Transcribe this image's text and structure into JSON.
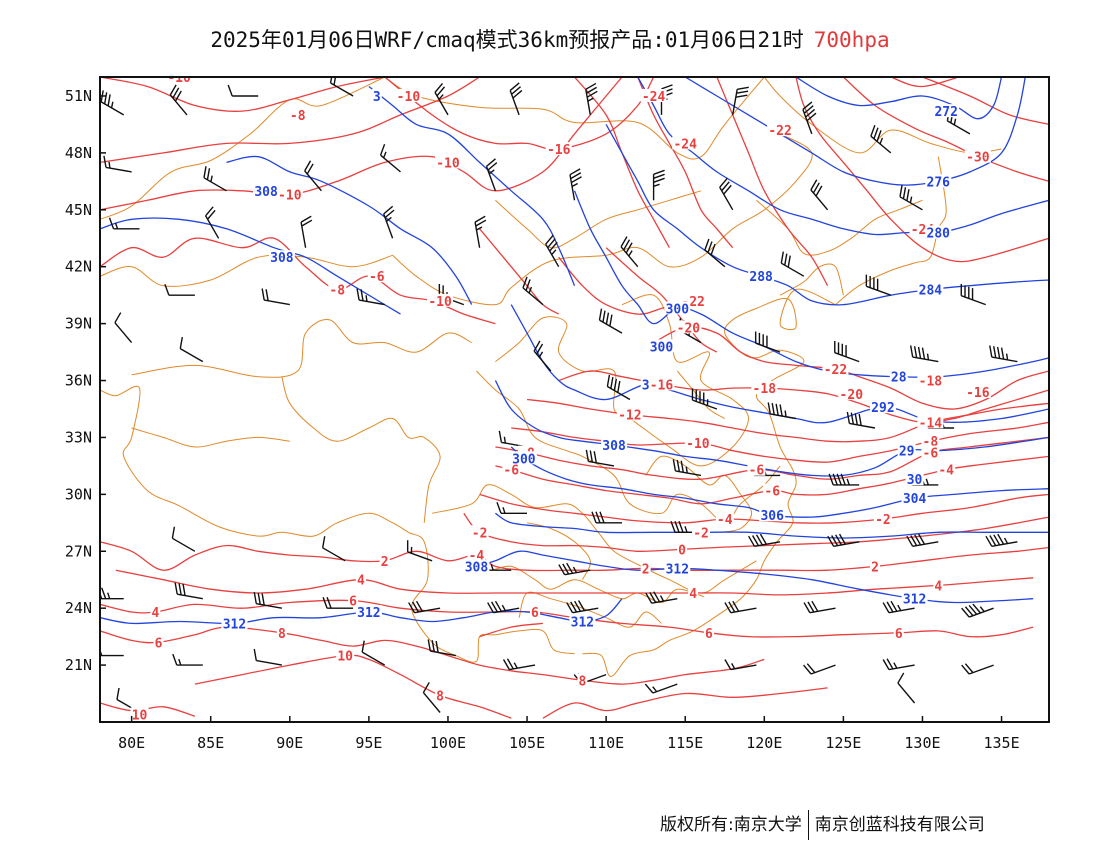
{
  "title": {
    "main": "2025年01月06日WRF/cmaq模式36km预报产品:01月06日21时",
    "level": "700hpa"
  },
  "colors": {
    "temperature": "#e8403f",
    "height": "#2244dd",
    "border": "#e08a2a",
    "wind": "#111111",
    "level_text": "#e03a3a"
  },
  "axes": {
    "x_ticks": [
      "80E",
      "85E",
      "90E",
      "95E",
      "100E",
      "105E",
      "110E",
      "115E",
      "120E",
      "125E",
      "130E",
      "135E"
    ],
    "y_ticks": [
      "51N",
      "48N",
      "45N",
      "42N",
      "39N",
      "36N",
      "33N",
      "30N",
      "27N",
      "24N",
      "21N"
    ],
    "lon_range": [
      78,
      138
    ],
    "lat_range": [
      18,
      52
    ]
  },
  "map_data": {
    "temperature_labels": [
      {
        "value": "-10",
        "lon": 83,
        "lat": 52
      },
      {
        "value": "-8",
        "lon": 90.5,
        "lat": 50
      },
      {
        "value": "-10",
        "lon": 97.5,
        "lat": 51
      },
      {
        "value": "-10",
        "lon": 90,
        "lat": 45.8
      },
      {
        "value": "-10",
        "lon": 100,
        "lat": 47.5
      },
      {
        "value": "-16",
        "lon": 107,
        "lat": 48.2
      },
      {
        "value": "-24",
        "lon": 113,
        "lat": 51
      },
      {
        "value": "-24",
        "lon": 115,
        "lat": 48.5
      },
      {
        "value": "-22",
        "lon": 121,
        "lat": 49.2
      },
      {
        "value": "-30",
        "lon": 133.5,
        "lat": 47.8
      },
      {
        "value": "-24",
        "lon": 130,
        "lat": 44
      },
      {
        "value": "-8",
        "lon": 93,
        "lat": 40.8
      },
      {
        "value": "-6",
        "lon": 95.5,
        "lat": 41.5
      },
      {
        "value": "-10",
        "lon": 99.5,
        "lat": 40.2
      },
      {
        "value": "-22",
        "lon": 115.5,
        "lat": 40.2
      },
      {
        "value": "-20",
        "lon": 115.2,
        "lat": 38.8
      },
      {
        "value": "-22",
        "lon": 124.5,
        "lat": 36.6
      },
      {
        "value": "-16",
        "lon": 113.5,
        "lat": 35.8
      },
      {
        "value": "-18",
        "lon": 120,
        "lat": 35.6
      },
      {
        "value": "-20",
        "lon": 125.5,
        "lat": 35.3
      },
      {
        "value": "-18",
        "lon": 130.5,
        "lat": 36
      },
      {
        "value": "-16",
        "lon": 133.5,
        "lat": 35.4
      },
      {
        "value": "-12",
        "lon": 111.5,
        "lat": 34.2
      },
      {
        "value": "-14",
        "lon": 130.5,
        "lat": 33.8
      },
      {
        "value": "-10",
        "lon": 115.8,
        "lat": 32.7
      },
      {
        "value": "-8",
        "lon": 130.5,
        "lat": 32.8
      },
      {
        "value": "-6",
        "lon": 130.5,
        "lat": 32.2
      },
      {
        "value": "-8",
        "lon": 105,
        "lat": 32.2
      },
      {
        "value": "-6",
        "lon": 104,
        "lat": 31.3
      },
      {
        "value": "-6",
        "lon": 119.5,
        "lat": 31.3
      },
      {
        "value": "-4",
        "lon": 131.5,
        "lat": 31.3
      },
      {
        "value": "-6",
        "lon": 120.5,
        "lat": 30.2
      },
      {
        "value": "-4",
        "lon": 117.5,
        "lat": 28.7
      },
      {
        "value": "-2",
        "lon": 127.5,
        "lat": 28.7
      },
      {
        "value": "-2",
        "lon": 102,
        "lat": 28
      },
      {
        "value": "-2",
        "lon": 116,
        "lat": 28
      },
      {
        "value": "0",
        "lon": 114.8,
        "lat": 27.1
      },
      {
        "value": "2",
        "lon": 96,
        "lat": 26.5
      },
      {
        "value": "-4",
        "lon": 101.8,
        "lat": 26.8
      },
      {
        "value": "2",
        "lon": 112.5,
        "lat": 26.1
      },
      {
        "value": "2",
        "lon": 127,
        "lat": 26.2
      },
      {
        "value": "4",
        "lon": 94.5,
        "lat": 25.5
      },
      {
        "value": "4",
        "lon": 115.5,
        "lat": 24.8
      },
      {
        "value": "4",
        "lon": 131,
        "lat": 25.2
      },
      {
        "value": "4",
        "lon": 81.5,
        "lat": 23.8
      },
      {
        "value": "6",
        "lon": 94,
        "lat": 24.4
      },
      {
        "value": "6",
        "lon": 105.5,
        "lat": 23.8
      },
      {
        "value": "6",
        "lon": 81.7,
        "lat": 22.2
      },
      {
        "value": "8",
        "lon": 89.5,
        "lat": 22.7
      },
      {
        "value": "6",
        "lon": 116.5,
        "lat": 22.7
      },
      {
        "value": "6",
        "lon": 128.5,
        "lat": 22.7
      },
      {
        "value": "10",
        "lon": 93.5,
        "lat": 21.5
      },
      {
        "value": "8",
        "lon": 108.5,
        "lat": 20.2
      },
      {
        "value": "8",
        "lon": 99.5,
        "lat": 19.4
      },
      {
        "value": "10",
        "lon": 80.5,
        "lat": 18.4
      }
    ],
    "height_labels": [
      {
        "value": "3",
        "lon": 95.5,
        "lat": 51
      },
      {
        "value": "308",
        "lon": 88.5,
        "lat": 46
      },
      {
        "value": "308",
        "lon": 89.5,
        "lat": 42.5
      },
      {
        "value": "272",
        "lon": 131.5,
        "lat": 50.2
      },
      {
        "value": "276",
        "lon": 131,
        "lat": 46.5
      },
      {
        "value": "280",
        "lon": 131,
        "lat": 43.8
      },
      {
        "value": "284",
        "lon": 130.5,
        "lat": 40.8
      },
      {
        "value": "288",
        "lon": 119.8,
        "lat": 41.5
      },
      {
        "value": "300",
        "lon": 114.5,
        "lat": 39.8
      },
      {
        "value": "300",
        "lon": 113.5,
        "lat": 37.8
      },
      {
        "value": "3",
        "lon": 112.5,
        "lat": 35.8
      },
      {
        "value": "292",
        "lon": 127.5,
        "lat": 34.6
      },
      {
        "value": "28",
        "lon": 128.5,
        "lat": 36.2
      },
      {
        "value": "308",
        "lon": 110.5,
        "lat": 32.6
      },
      {
        "value": "300",
        "lon": 104.8,
        "lat": 31.9
      },
      {
        "value": "29",
        "lon": 129,
        "lat": 32.3
      },
      {
        "value": "30",
        "lon": 129.5,
        "lat": 30.8
      },
      {
        "value": "304",
        "lon": 129.5,
        "lat": 29.8
      },
      {
        "value": "306",
        "lon": 120.5,
        "lat": 28.9
      },
      {
        "value": "308",
        "lon": 101.8,
        "lat": 26.2
      },
      {
        "value": "312",
        "lon": 114.5,
        "lat": 26.1
      },
      {
        "value": "312",
        "lon": 129.5,
        "lat": 24.5
      },
      {
        "value": "312",
        "lon": 86.5,
        "lat": 23.2
      },
      {
        "value": "312",
        "lon": 95,
        "lat": 23.8
      },
      {
        "value": "312",
        "lon": 108.5,
        "lat": 23.3
      }
    ],
    "wind_barbs": [
      {
        "lon": 79.5,
        "lat": 50,
        "dir": 300,
        "spd": 14
      },
      {
        "lon": 83.5,
        "lat": 50,
        "dir": 320,
        "spd": 12
      },
      {
        "lon": 88,
        "lat": 51,
        "dir": 270,
        "spd": 4
      },
      {
        "lon": 94,
        "lat": 51,
        "dir": 300,
        "spd": 8
      },
      {
        "lon": 100,
        "lat": 50,
        "dir": 330,
        "spd": 10
      },
      {
        "lon": 104.5,
        "lat": 50,
        "dir": 340,
        "spd": 12
      },
      {
        "lon": 109,
        "lat": 50,
        "dir": 350,
        "spd": 14
      },
      {
        "lon": 113.5,
        "lat": 50,
        "dir": 0,
        "spd": 14
      },
      {
        "lon": 118,
        "lat": 50,
        "dir": 10,
        "spd": 12
      },
      {
        "lon": 123,
        "lat": 49,
        "dir": 340,
        "spd": 16
      },
      {
        "lon": 128,
        "lat": 48,
        "dir": 310,
        "spd": 14
      },
      {
        "lon": 133,
        "lat": 49,
        "dir": 300,
        "spd": 10
      },
      {
        "lon": 80,
        "lat": 47,
        "dir": 280,
        "spd": 6
      },
      {
        "lon": 86,
        "lat": 46,
        "dir": 300,
        "spd": 10
      },
      {
        "lon": 92,
        "lat": 46,
        "dir": 320,
        "spd": 8
      },
      {
        "lon": 97,
        "lat": 47,
        "dir": 310,
        "spd": 6
      },
      {
        "lon": 103,
        "lat": 46,
        "dir": 340,
        "spd": 10
      },
      {
        "lon": 108,
        "lat": 45.5,
        "dir": 350,
        "spd": 14
      },
      {
        "lon": 113,
        "lat": 45.5,
        "dir": 0,
        "spd": 14
      },
      {
        "lon": 118,
        "lat": 45,
        "dir": 330,
        "spd": 12
      },
      {
        "lon": 124,
        "lat": 45,
        "dir": 320,
        "spd": 12
      },
      {
        "lon": 130,
        "lat": 45,
        "dir": 300,
        "spd": 14
      },
      {
        "lon": 80.5,
        "lat": 44,
        "dir": 270,
        "spd": 6
      },
      {
        "lon": 85.5,
        "lat": 43.5,
        "dir": 330,
        "spd": 8
      },
      {
        "lon": 91,
        "lat": 43,
        "dir": 350,
        "spd": 8
      },
      {
        "lon": 96.5,
        "lat": 43.5,
        "dir": 340,
        "spd": 10
      },
      {
        "lon": 102,
        "lat": 43,
        "dir": 350,
        "spd": 10
      },
      {
        "lon": 107,
        "lat": 42,
        "dir": 330,
        "spd": 14
      },
      {
        "lon": 112,
        "lat": 42,
        "dir": 320,
        "spd": 14
      },
      {
        "lon": 117.5,
        "lat": 42,
        "dir": 310,
        "spd": 12
      },
      {
        "lon": 122.5,
        "lat": 41.5,
        "dir": 300,
        "spd": 12
      },
      {
        "lon": 128,
        "lat": 40.5,
        "dir": 290,
        "spd": 16
      },
      {
        "lon": 134,
        "lat": 40,
        "dir": 290,
        "spd": 16
      },
      {
        "lon": 84,
        "lat": 40.5,
        "dir": 270,
        "spd": 4
      },
      {
        "lon": 90,
        "lat": 40,
        "dir": 280,
        "spd": 8
      },
      {
        "lon": 96,
        "lat": 40,
        "dir": 280,
        "spd": 10
      },
      {
        "lon": 101,
        "lat": 40,
        "dir": 290,
        "spd": 10
      },
      {
        "lon": 106,
        "lat": 40,
        "dir": 310,
        "spd": 10
      },
      {
        "lon": 111,
        "lat": 38.5,
        "dir": 300,
        "spd": 16
      },
      {
        "lon": 116,
        "lat": 38,
        "dir": 300,
        "spd": 16
      },
      {
        "lon": 121,
        "lat": 37.5,
        "dir": 290,
        "spd": 16
      },
      {
        "lon": 126,
        "lat": 37,
        "dir": 290,
        "spd": 16
      },
      {
        "lon": 131,
        "lat": 37,
        "dir": 280,
        "spd": 18
      },
      {
        "lon": 136,
        "lat": 37,
        "dir": 280,
        "spd": 18
      },
      {
        "lon": 80,
        "lat": 38,
        "dir": 320,
        "spd": 4
      },
      {
        "lon": 84.5,
        "lat": 37,
        "dir": 300,
        "spd": 4
      },
      {
        "lon": 106.5,
        "lat": 36.5,
        "dir": 320,
        "spd": 10
      },
      {
        "lon": 111.5,
        "lat": 35,
        "dir": 300,
        "spd": 16
      },
      {
        "lon": 117,
        "lat": 34.5,
        "dir": 290,
        "spd": 18
      },
      {
        "lon": 122,
        "lat": 34,
        "dir": 280,
        "spd": 18
      },
      {
        "lon": 127,
        "lat": 33.5,
        "dir": 280,
        "spd": 16
      },
      {
        "lon": 132,
        "lat": 33.5,
        "dir": 270,
        "spd": 18
      },
      {
        "lon": 105,
        "lat": 32.5,
        "dir": 280,
        "spd": 6
      },
      {
        "lon": 110.5,
        "lat": 31.5,
        "dir": 280,
        "spd": 12
      },
      {
        "lon": 116,
        "lat": 31,
        "dir": 280,
        "spd": 14
      },
      {
        "lon": 121,
        "lat": 31,
        "dir": 270,
        "spd": 16
      },
      {
        "lon": 126,
        "lat": 30.5,
        "dir": 270,
        "spd": 18
      },
      {
        "lon": 131,
        "lat": 30.5,
        "dir": 270,
        "spd": 18
      },
      {
        "lon": 105,
        "lat": 29,
        "dir": 270,
        "spd": 6
      },
      {
        "lon": 111,
        "lat": 28.5,
        "dir": 270,
        "spd": 12
      },
      {
        "lon": 116,
        "lat": 28,
        "dir": 270,
        "spd": 14
      },
      {
        "lon": 121,
        "lat": 27.5,
        "dir": 260,
        "spd": 16
      },
      {
        "lon": 126,
        "lat": 27.5,
        "dir": 260,
        "spd": 16
      },
      {
        "lon": 131,
        "lat": 27.5,
        "dir": 260,
        "spd": 16
      },
      {
        "lon": 136,
        "lat": 27.5,
        "dir": 260,
        "spd": 18
      },
      {
        "lon": 84,
        "lat": 27,
        "dir": 300,
        "spd": 4
      },
      {
        "lon": 93.5,
        "lat": 26.5,
        "dir": 300,
        "spd": 4
      },
      {
        "lon": 99,
        "lat": 26.5,
        "dir": 290,
        "spd": 6
      },
      {
        "lon": 104,
        "lat": 26,
        "dir": 270,
        "spd": 10
      },
      {
        "lon": 109,
        "lat": 26,
        "dir": 260,
        "spd": 14
      },
      {
        "lon": 79.5,
        "lat": 24.5,
        "dir": 270,
        "spd": 14
      },
      {
        "lon": 84.5,
        "lat": 24.5,
        "dir": 280,
        "spd": 12
      },
      {
        "lon": 89.5,
        "lat": 24,
        "dir": 280,
        "spd": 12
      },
      {
        "lon": 94,
        "lat": 24,
        "dir": 270,
        "spd": 8
      },
      {
        "lon": 99.5,
        "lat": 24,
        "dir": 260,
        "spd": 12
      },
      {
        "lon": 104.5,
        "lat": 24,
        "dir": 260,
        "spd": 14
      },
      {
        "lon": 109.5,
        "lat": 24,
        "dir": 260,
        "spd": 16
      },
      {
        "lon": 114.5,
        "lat": 24.5,
        "dir": 260,
        "spd": 14
      },
      {
        "lon": 119.5,
        "lat": 24,
        "dir": 260,
        "spd": 12
      },
      {
        "lon": 124.5,
        "lat": 24,
        "dir": 260,
        "spd": 12
      },
      {
        "lon": 129.5,
        "lat": 24,
        "dir": 260,
        "spd": 14
      },
      {
        "lon": 134.5,
        "lat": 24,
        "dir": 250,
        "spd": 18
      },
      {
        "lon": 79.5,
        "lat": 21.5,
        "dir": 270,
        "spd": 6
      },
      {
        "lon": 84.5,
        "lat": 21,
        "dir": 270,
        "spd": 6
      },
      {
        "lon": 89.5,
        "lat": 21,
        "dir": 280,
        "spd": 4
      },
      {
        "lon": 96,
        "lat": 21,
        "dir": 300,
        "spd": 4
      },
      {
        "lon": 100.5,
        "lat": 21.5,
        "dir": 280,
        "spd": 12
      },
      {
        "lon": 105.5,
        "lat": 21,
        "dir": 260,
        "spd": 10
      },
      {
        "lon": 110,
        "lat": 20.5,
        "dir": 250,
        "spd": 8
      },
      {
        "lon": 114.5,
        "lat": 20,
        "dir": 250,
        "spd": 6
      },
      {
        "lon": 119.5,
        "lat": 21,
        "dir": 260,
        "spd": 6
      },
      {
        "lon": 124.5,
        "lat": 21,
        "dir": 250,
        "spd": 8
      },
      {
        "lon": 129.5,
        "lat": 21,
        "dir": 260,
        "spd": 10
      },
      {
        "lon": 134.5,
        "lat": 21,
        "dir": 250,
        "spd": 8
      },
      {
        "lon": 80.5,
        "lat": 18.5,
        "dir": 300,
        "spd": 4
      },
      {
        "lon": 99.5,
        "lat": 18.5,
        "dir": 320,
        "spd": 4
      },
      {
        "lon": 129.5,
        "lat": 19,
        "dir": 320,
        "spd": 4
      }
    ]
  },
  "footer": {
    "left": "版权所有:南京大学",
    "right": "南京创蓝科技有限公司"
  }
}
